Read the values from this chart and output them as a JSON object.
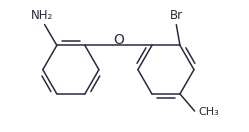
{
  "background_color": "#ffffff",
  "line_color": "#2a2a3e",
  "label_color": "#2a2a3e",
  "font_size": 8.5,
  "figsize": [
    2.49,
    1.32
  ],
  "dpi": 100,
  "nh2_label": "NH₂",
  "br_label": "Br",
  "o_label": "O",
  "me_label": "CH₃"
}
